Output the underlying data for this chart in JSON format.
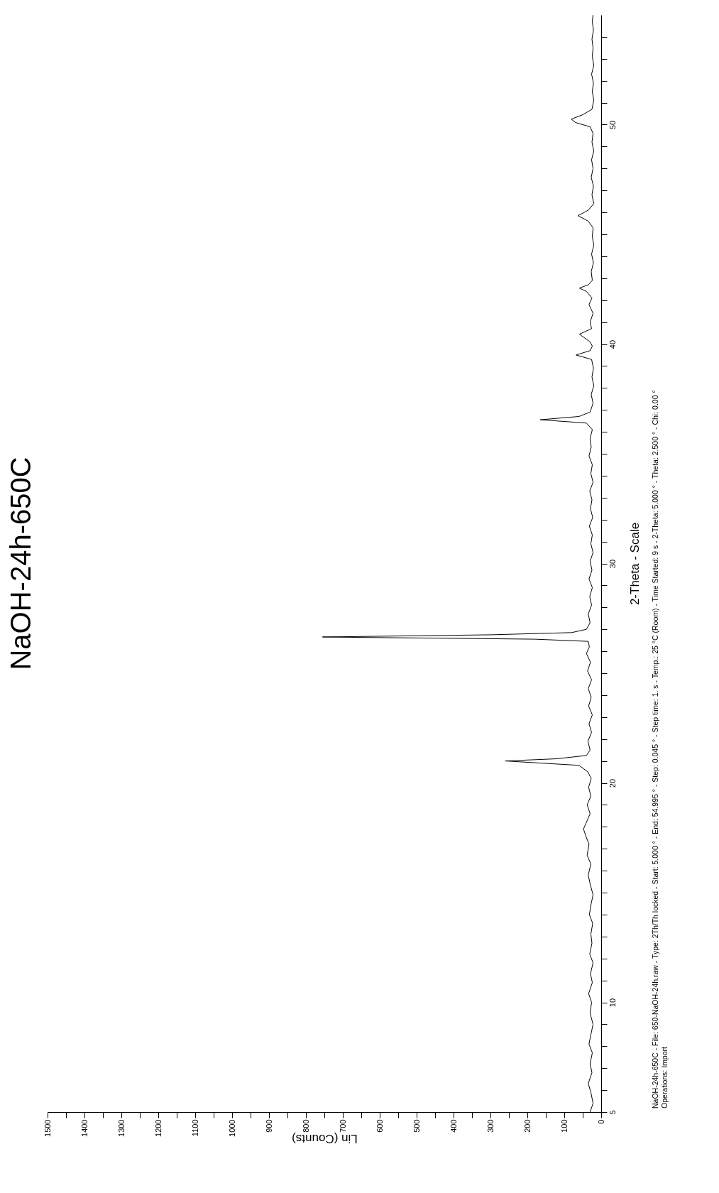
{
  "chart_data": {
    "type": "line",
    "title": "NaOH-24h-650C",
    "xlabel": "Lin (Counts)",
    "ylabel": "2-Theta - Scale",
    "color": "#000000",
    "xlim": [
      1500,
      0
    ],
    "ylim": [
      5,
      55
    ],
    "yticks": [
      5,
      {
        "value": 6,
        "label": null
      },
      {
        "value": 7,
        "label": null
      },
      {
        "value": 8,
        "label": null
      },
      {
        "value": 9,
        "label": null
      },
      10,
      {
        "value": 11,
        "label": null
      },
      {
        "value": 12,
        "label": null
      },
      {
        "value": 13,
        "label": null
      },
      {
        "value": 14,
        "label": null
      },
      {
        "value": 15,
        "label": null
      },
      {
        "value": 16,
        "label": null
      },
      {
        "value": 17,
        "label": null
      },
      {
        "value": 18,
        "label": null
      },
      {
        "value": 19,
        "label": null
      },
      20,
      {
        "value": 21,
        "label": null
      },
      {
        "value": 22,
        "label": null
      },
      {
        "value": 23,
        "label": null
      },
      {
        "value": 24,
        "label": null
      },
      {
        "value": 25,
        "label": null
      },
      {
        "value": 26,
        "label": null
      },
      {
        "value": 27,
        "label": null
      },
      {
        "value": 28,
        "label": null
      },
      {
        "value": 29,
        "label": null
      },
      30,
      {
        "value": 31,
        "label": null
      },
      {
        "value": 32,
        "label": null
      },
      {
        "value": 33,
        "label": null
      },
      {
        "value": 34,
        "label": null
      },
      {
        "value": 35,
        "label": null
      },
      {
        "value": 36,
        "label": null
      },
      {
        "value": 37,
        "label": null
      },
      {
        "value": 38,
        "label": null
      },
      {
        "value": 39,
        "label": null
      },
      40,
      {
        "value": 41,
        "label": null
      },
      {
        "value": 42,
        "label": null
      },
      {
        "value": 43,
        "label": null
      },
      {
        "value": 44,
        "label": null
      },
      {
        "value": 45,
        "label": null
      },
      {
        "value": 46,
        "label": null
      },
      {
        "value": 47,
        "label": null
      },
      {
        "value": 48,
        "label": null
      },
      {
        "value": 49,
        "label": null
      },
      50,
      {
        "value": 51,
        "label": null
      },
      {
        "value": 52,
        "label": null
      },
      {
        "value": 53,
        "label": null
      },
      {
        "value": 54,
        "label": null
      }
    ],
    "xticks": [
      1500,
      {
        "value": 1450,
        "label": null
      },
      1400,
      {
        "value": 1350,
        "label": null
      },
      1300,
      {
        "value": 1250,
        "label": null
      },
      1200,
      {
        "value": 1150,
        "label": null
      },
      1100,
      {
        "value": 1050,
        "label": null
      },
      1000,
      {
        "value": 950,
        "label": null
      },
      900,
      {
        "value": 850,
        "label": null
      },
      800,
      {
        "value": 750,
        "label": null
      },
      700,
      {
        "value": 650,
        "label": null
      },
      600,
      {
        "value": 550,
        "label": null
      },
      500,
      {
        "value": 450,
        "label": null
      },
      400,
      {
        "value": 350,
        "label": null
      },
      300,
      {
        "value": 250,
        "label": null
      },
      200,
      {
        "value": 150,
        "label": null
      },
      100,
      {
        "value": 50,
        "label": null
      },
      0
    ],
    "grid": false,
    "values": [
      5,
      5.4,
      5.9,
      6.3,
      6.8,
      7.2,
      7.7,
      8.1,
      8.6,
      9.0,
      9.5,
      10.0,
      10.4,
      10.9,
      11.3,
      11.8,
      12.2,
      12.7,
      13.1,
      13.6,
      14.0,
      14.5,
      14.9,
      15.4,
      15.8,
      16.3,
      16.7,
      17.2,
      17.6,
      17.9,
      18.2,
      18.6,
      19.0,
      19.4,
      19.8,
      20.2,
      20.5,
      20.8,
      20.9,
      21.0,
      21.1,
      21.25,
      21.5,
      21.9,
      22.3,
      22.7,
      23.1,
      23.5,
      23.9,
      24.3,
      24.7,
      25.1,
      25.5,
      25.9,
      26.2,
      26.45,
      26.55,
      26.65,
      26.75,
      26.85,
      27.0,
      27.3,
      27.7,
      28.1,
      28.5,
      28.9,
      29.3,
      29.7,
      30.1,
      30.5,
      30.9,
      31.3,
      31.7,
      32.1,
      32.5,
      32.9,
      33.3,
      33.7,
      34.1,
      34.5,
      34.9,
      35.3,
      35.7,
      36.1,
      36.4,
      36.55,
      36.7,
      36.9,
      37.3,
      37.7,
      38.1,
      38.5,
      38.9,
      39.3,
      39.5,
      39.7,
      39.9,
      40.1,
      40.45,
      40.7,
      41.0,
      41.4,
      41.8,
      42.1,
      42.4,
      42.55,
      42.7,
      42.9,
      43.3,
      43.7,
      44.1,
      44.5,
      44.9,
      45.3,
      45.6,
      45.85,
      46.1,
      46.4,
      46.8,
      47.2,
      47.6,
      48.0,
      48.4,
      48.8,
      49.2,
      49.6,
      49.9,
      50.1,
      50.25,
      50.45,
      50.7,
      51.1,
      51.5,
      51.9,
      52.3,
      52.7,
      53.1,
      53.5,
      53.9,
      54.3,
      54.7,
      55.0
    ],
    "x": [
      30,
      22,
      28,
      35,
      25,
      30,
      24,
      33,
      27,
      22,
      30,
      26,
      34,
      24,
      29,
      22,
      31,
      25,
      28,
      23,
      32,
      27,
      22,
      30,
      35,
      28,
      38,
      33,
      42,
      48,
      40,
      30,
      38,
      28,
      34,
      27,
      36,
      60,
      160,
      260,
      120,
      40,
      30,
      36,
      26,
      33,
      24,
      34,
      27,
      35,
      26,
      37,
      29,
      40,
      32,
      35,
      180,
      755,
      300,
      80,
      40,
      30,
      35,
      26,
      31,
      24,
      33,
      25,
      30,
      22,
      28,
      24,
      32,
      23,
      29,
      25,
      31,
      22,
      28,
      24,
      33,
      27,
      30,
      24,
      40,
      165,
      60,
      30,
      22,
      27,
      20,
      25,
      21,
      26,
      68,
      30,
      24,
      30,
      59,
      26,
      30,
      22,
      33,
      25,
      40,
      59,
      35,
      24,
      27,
      21,
      26,
      20,
      24,
      22,
      35,
      63,
      35,
      20,
      25,
      21,
      27,
      22,
      26,
      20,
      25,
      22,
      30,
      70,
      81,
      50,
      25,
      20,
      24,
      21,
      26,
      20,
      24,
      22,
      25,
      21,
      24,
      22
    ],
    "annotations": [
      "NaOH-24h-650C - File: 650-NaOH-24h.raw - Type: 2Th/Th locked - Start: 5.000 ° - End: 54.995 ° - Step: 0.045 ° - Step time: 1. s - Temp.: 25 °C (Room) - Time Started: 9 s - 2-Theta: 5.000 ° - Theta: 2.500 ° - Chi: 0.00 °",
      "Operations: Import"
    ]
  }
}
